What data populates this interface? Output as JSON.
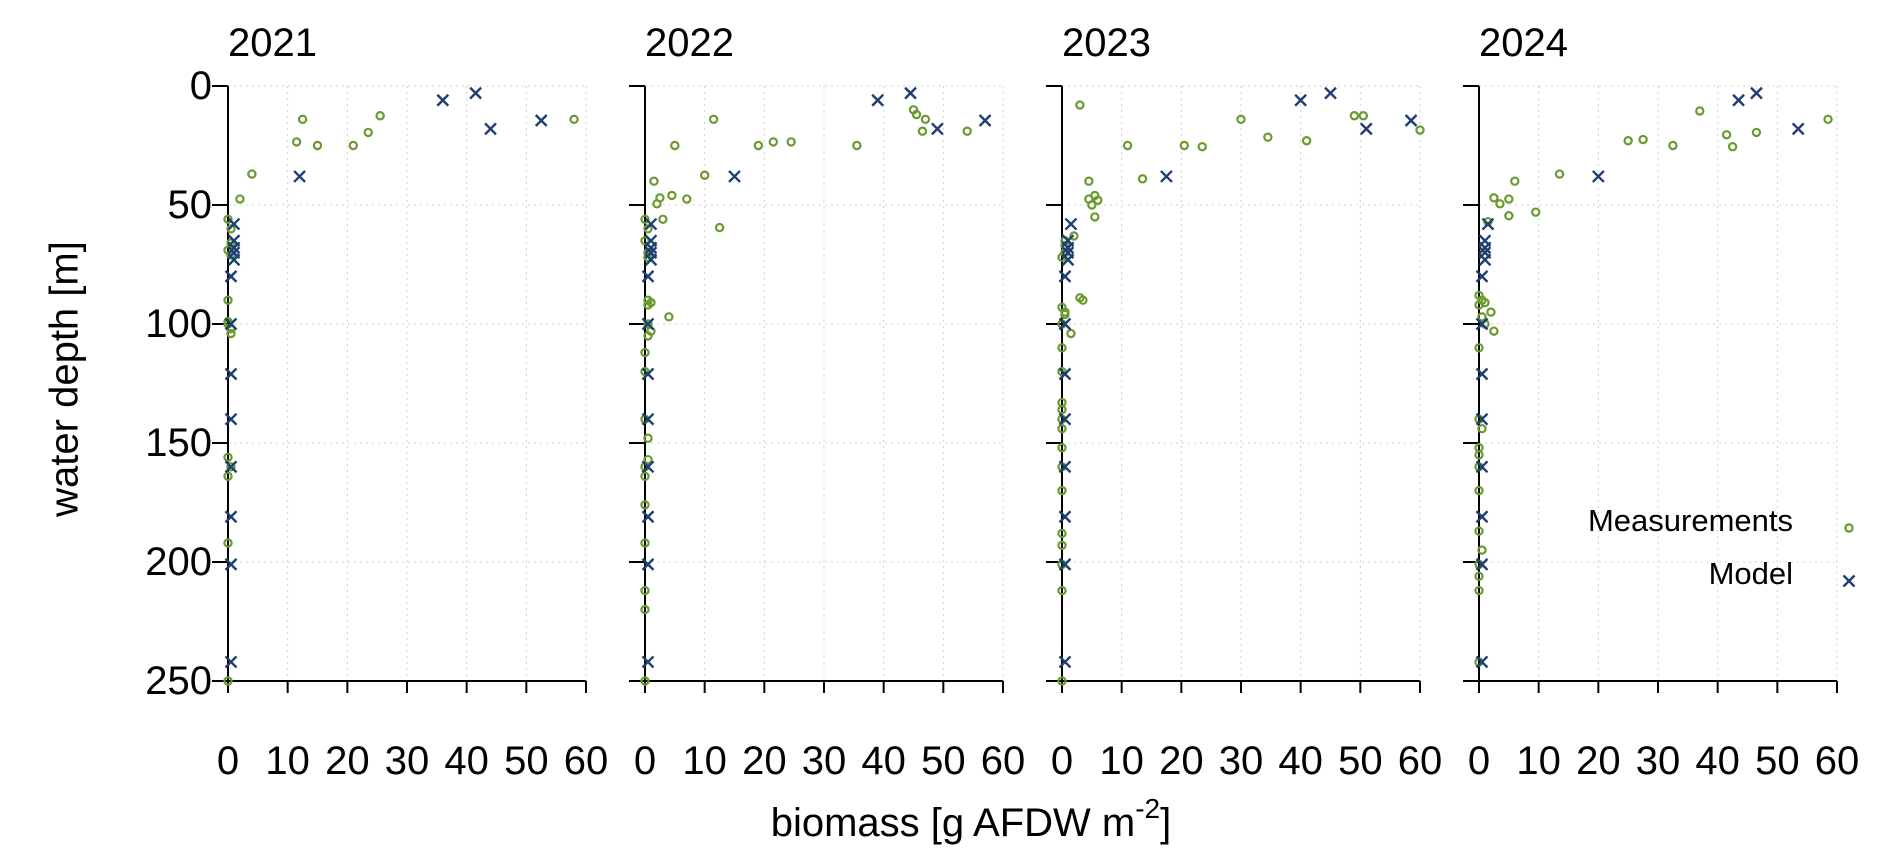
{
  "chart_data": {
    "type": "scatter",
    "layout": "small-multiples",
    "ylabel": "water depth [m]",
    "xlabel": {
      "prefix": "biomass [g AFDW m",
      "superscript": "-2",
      "suffix": "]"
    },
    "xlim": [
      0,
      60
    ],
    "ylim": [
      0,
      250
    ],
    "y_inverted": true,
    "xticks": [
      0,
      10,
      20,
      30,
      40,
      50,
      60
    ],
    "yticks": [
      0,
      50,
      100,
      150,
      200,
      250
    ],
    "grid": true,
    "colors": {
      "measurements": "#6a9a2e",
      "model": "#1f3f73"
    },
    "legend": {
      "placement": "lower-right",
      "entries": [
        {
          "label": "Measurements",
          "marker": "circle"
        },
        {
          "label": "Model",
          "marker": "cross"
        }
      ]
    },
    "panels": [
      {
        "title": "2021",
        "series": [
          {
            "name": "Measurements",
            "marker": "circle",
            "points": [
              [
                12.5,
                14
              ],
              [
                25.5,
                12.5
              ],
              [
                58,
                14
              ],
              [
                11.5,
                23.5
              ],
              [
                15,
                25
              ],
              [
                21,
                25
              ],
              [
                23.5,
                19.5
              ],
              [
                4,
                37
              ],
              [
                2,
                47.5
              ],
              [
                0,
                56
              ],
              [
                0.5,
                60
              ],
              [
                0.5,
                66
              ],
              [
                0,
                69
              ],
              [
                0.5,
                71
              ],
              [
                0,
                90
              ],
              [
                0,
                99
              ],
              [
                0,
                100
              ],
              [
                0.5,
                102
              ],
              [
                0.5,
                104
              ],
              [
                0,
                156
              ],
              [
                0.5,
                160
              ],
              [
                0,
                164
              ],
              [
                0,
                192
              ],
              [
                0,
                250
              ]
            ]
          },
          {
            "name": "Model",
            "marker": "cross",
            "points": [
              [
                41.5,
                3
              ],
              [
                36,
                6
              ],
              [
                44,
                18
              ],
              [
                52.5,
                14.5
              ],
              [
                12,
                38
              ],
              [
                1,
                58
              ],
              [
                1,
                65
              ],
              [
                1,
                68
              ],
              [
                1,
                70
              ],
              [
                1,
                73
              ],
              [
                0.5,
                80
              ],
              [
                0.5,
                100
              ],
              [
                0.5,
                121
              ],
              [
                0.5,
                140
              ],
              [
                0.5,
                160
              ],
              [
                0.5,
                181
              ],
              [
                0.5,
                201
              ],
              [
                0.5,
                242
              ]
            ]
          }
        ]
      },
      {
        "title": "2022",
        "series": [
          {
            "name": "Measurements",
            "marker": "circle",
            "points": [
              [
                11.5,
                14
              ],
              [
                45,
                10
              ],
              [
                45.5,
                12
              ],
              [
                47,
                14
              ],
              [
                46.5,
                19
              ],
              [
                54,
                19
              ],
              [
                5,
                25
              ],
              [
                19,
                25
              ],
              [
                21.5,
                23.5
              ],
              [
                24.5,
                23.5
              ],
              [
                35.5,
                25
              ],
              [
                10,
                37.5
              ],
              [
                1.5,
                40
              ],
              [
                2.5,
                47
              ],
              [
                2,
                49.5
              ],
              [
                4.5,
                46
              ],
              [
                7,
                47.5
              ],
              [
                3,
                56
              ],
              [
                12.5,
                59.5
              ],
              [
                0,
                56
              ],
              [
                0.5,
                60
              ],
              [
                0,
                65
              ],
              [
                0.5,
                70
              ],
              [
                0.5,
                72
              ],
              [
                0.5,
                90
              ],
              [
                1,
                91
              ],
              [
                0.5,
                92
              ],
              [
                4,
                97
              ],
              [
                0.5,
                100
              ],
              [
                1,
                103
              ],
              [
                0.5,
                105
              ],
              [
                0,
                112
              ],
              [
                0,
                120
              ],
              [
                0,
                140
              ],
              [
                0.5,
                148
              ],
              [
                0.5,
                157
              ],
              [
                0,
                160
              ],
              [
                0,
                164
              ],
              [
                0,
                176
              ],
              [
                0,
                192
              ],
              [
                0,
                212
              ],
              [
                0,
                220
              ],
              [
                0,
                250
              ]
            ]
          },
          {
            "name": "Model",
            "marker": "cross",
            "points": [
              [
                44.5,
                3
              ],
              [
                39,
                6
              ],
              [
                49,
                18
              ],
              [
                57,
                14.5
              ],
              [
                15,
                38
              ],
              [
                1,
                58
              ],
              [
                1,
                65
              ],
              [
                1,
                68
              ],
              [
                1,
                70
              ],
              [
                1,
                73
              ],
              [
                0.5,
                80
              ],
              [
                0.5,
                100
              ],
              [
                0.5,
                121
              ],
              [
                0.5,
                140
              ],
              [
                0.5,
                160
              ],
              [
                0.5,
                181
              ],
              [
                0.5,
                201
              ],
              [
                0.5,
                242
              ]
            ]
          }
        ]
      },
      {
        "title": "2023",
        "series": [
          {
            "name": "Measurements",
            "marker": "circle",
            "points": [
              [
                3,
                8
              ],
              [
                30,
                14
              ],
              [
                49,
                12.5
              ],
              [
                50.5,
                12.5
              ],
              [
                60,
                18.5
              ],
              [
                11,
                25
              ],
              [
                20.5,
                25
              ],
              [
                23.5,
                25.5
              ],
              [
                34.5,
                21.5
              ],
              [
                41,
                23
              ],
              [
                4.5,
                40
              ],
              [
                13.5,
                39
              ],
              [
                5.5,
                46
              ],
              [
                4.5,
                47.5
              ],
              [
                6,
                48
              ],
              [
                5,
                50
              ],
              [
                5.5,
                55
              ],
              [
                2,
                63
              ],
              [
                0.5,
                65
              ],
              [
                0.5,
                67
              ],
              [
                0.5,
                70
              ],
              [
                0,
                72
              ],
              [
                3,
                89
              ],
              [
                3.5,
                90
              ],
              [
                0,
                93
              ],
              [
                0.5,
                95
              ],
              [
                0.5,
                96
              ],
              [
                0,
                100
              ],
              [
                1.5,
                104
              ],
              [
                0,
                110
              ],
              [
                0,
                120
              ],
              [
                0,
                133
              ],
              [
                0,
                136
              ],
              [
                0,
                140
              ],
              [
                0,
                144
              ],
              [
                0,
                152
              ],
              [
                0,
                160
              ],
              [
                0,
                170
              ],
              [
                0,
                188
              ],
              [
                0,
                193
              ],
              [
                0,
                201
              ],
              [
                0,
                212
              ],
              [
                0,
                250
              ]
            ]
          },
          {
            "name": "Model",
            "marker": "cross",
            "points": [
              [
                45,
                3
              ],
              [
                40,
                6
              ],
              [
                51,
                18
              ],
              [
                58.5,
                14.5
              ],
              [
                17.5,
                38
              ],
              [
                1.5,
                58
              ],
              [
                1,
                65
              ],
              [
                1,
                68
              ],
              [
                1,
                70
              ],
              [
                1,
                73
              ],
              [
                0.5,
                80
              ],
              [
                0.5,
                100
              ],
              [
                0.5,
                121
              ],
              [
                0.5,
                140
              ],
              [
                0.5,
                160
              ],
              [
                0.5,
                181
              ],
              [
                0.5,
                201
              ],
              [
                0.5,
                242
              ]
            ]
          }
        ]
      },
      {
        "title": "2024",
        "series": [
          {
            "name": "Measurements",
            "marker": "circle",
            "points": [
              [
                37,
                10.5
              ],
              [
                58.5,
                14
              ],
              [
                25,
                23
              ],
              [
                27.5,
                22.5
              ],
              [
                32.5,
                25
              ],
              [
                41.5,
                20.5
              ],
              [
                42.5,
                25.5
              ],
              [
                46.5,
                19.5
              ],
              [
                13.5,
                37
              ],
              [
                6,
                40
              ],
              [
                2.5,
                47
              ],
              [
                5,
                47.5
              ],
              [
                3.5,
                49.5
              ],
              [
                5,
                54.5
              ],
              [
                9.5,
                53
              ],
              [
                1.5,
                57
              ],
              [
                0,
                88
              ],
              [
                0.5,
                90
              ],
              [
                1,
                91
              ],
              [
                0,
                92
              ],
              [
                2,
                95
              ],
              [
                0.5,
                97
              ],
              [
                1,
                100
              ],
              [
                2.5,
                103
              ],
              [
                0,
                110
              ],
              [
                0,
                140
              ],
              [
                0.5,
                144
              ],
              [
                0,
                152
              ],
              [
                0,
                155
              ],
              [
                0,
                160
              ],
              [
                0,
                170
              ],
              [
                0,
                187
              ],
              [
                0.5,
                195
              ],
              [
                0,
                201
              ],
              [
                0,
                206
              ],
              [
                0,
                212
              ],
              [
                0,
                242
              ]
            ]
          },
          {
            "name": "Model",
            "marker": "cross",
            "points": [
              [
                46.5,
                3
              ],
              [
                43.5,
                6
              ],
              [
                53.5,
                18
              ],
              [
                20,
                38
              ],
              [
                1.5,
                58
              ],
              [
                1,
                65
              ],
              [
                1,
                68
              ],
              [
                1,
                70
              ],
              [
                1,
                73
              ],
              [
                0.5,
                80
              ],
              [
                0.5,
                100
              ],
              [
                0.5,
                121
              ],
              [
                0.5,
                140
              ],
              [
                0.5,
                160
              ],
              [
                0.5,
                181
              ],
              [
                0.5,
                201
              ],
              [
                0.5,
                242
              ]
            ]
          }
        ]
      }
    ]
  }
}
